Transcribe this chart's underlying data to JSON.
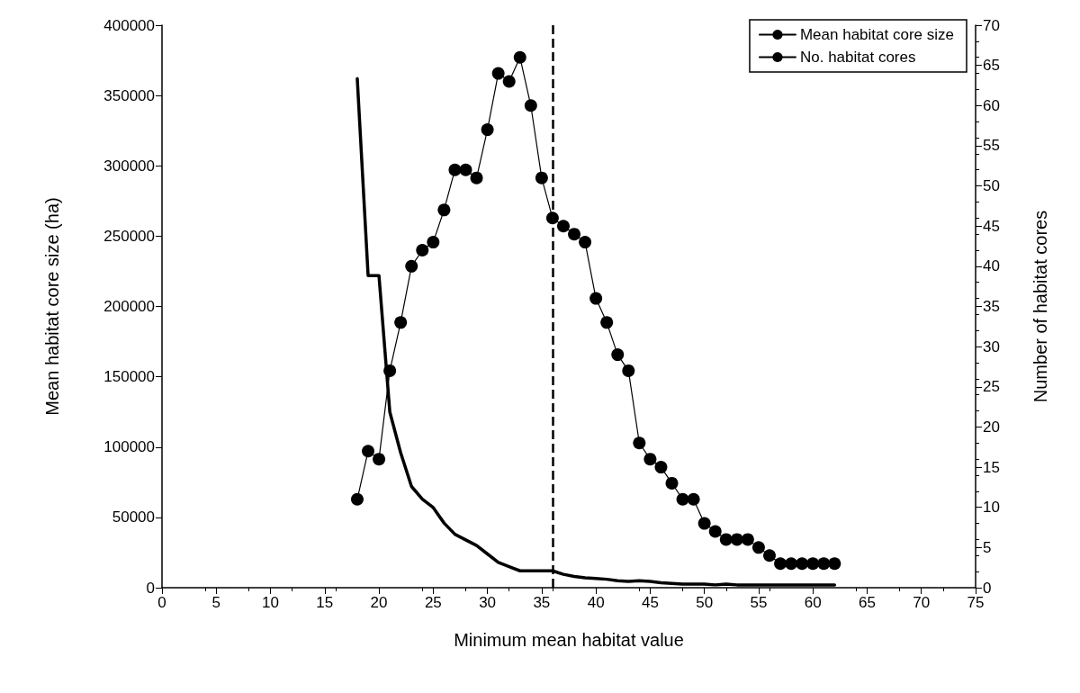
{
  "chart_data": {
    "type": "line",
    "xlabel": "Minimum mean habitat value",
    "ylabel": "Mean habitat core size (ha)",
    "y2label": "Number of habitat cores",
    "xlim": [
      0,
      75
    ],
    "xticks": [
      0,
      5,
      10,
      15,
      20,
      25,
      30,
      35,
      40,
      45,
      50,
      55,
      60,
      65,
      70,
      75
    ],
    "ylim": [
      0,
      400000
    ],
    "yticks": [
      0,
      50000,
      100000,
      150000,
      200000,
      250000,
      300000,
      350000,
      400000
    ],
    "y2lim": [
      0,
      70
    ],
    "y2ticks": [
      0,
      5,
      10,
      15,
      20,
      25,
      30,
      35,
      40,
      45,
      50,
      55,
      60,
      65,
      70
    ],
    "grid": false,
    "legend": "top right",
    "ref_lines": [
      {
        "axis": "x",
        "value": 36,
        "color": "#000000",
        "line_style": "dashed"
      }
    ],
    "x": [
      18,
      19,
      20,
      21,
      22,
      23,
      24,
      25,
      26,
      27,
      28,
      29,
      30,
      31,
      32,
      33,
      34,
      35,
      36,
      37,
      38,
      39,
      40,
      41,
      42,
      43,
      44,
      45,
      46,
      47,
      48,
      49,
      50,
      51,
      52,
      53,
      54,
      55,
      56,
      57,
      58,
      59,
      60,
      61,
      62
    ],
    "series": [
      {
        "name": "Mean habitat core size",
        "color": "#000000",
        "marker": "none",
        "values": [
          362000,
          222000,
          222000,
          125000,
          96000,
          72000,
          63000,
          57000,
          46000,
          38000,
          34000,
          30000,
          24000,
          18000,
          15000,
          12000,
          12000,
          12000,
          12000,
          9500,
          8000,
          7000,
          6500,
          6000,
          5000,
          4500,
          5000,
          4500,
          3500,
          3000,
          2500,
          2500,
          2500,
          2000,
          2500,
          2000,
          2000,
          2000,
          2000,
          2000,
          2000,
          2000,
          2000,
          2000,
          2000
        ]
      },
      {
        "name": "No. habitat cores",
        "color": "#000000",
        "marker": "circle",
        "axis": "y2",
        "values": [
          11,
          17,
          16,
          27,
          33,
          40,
          42,
          43,
          47,
          52,
          52,
          51,
          57,
          64,
          63,
          66,
          60,
          51,
          46,
          45,
          44,
          43,
          36,
          33,
          29,
          27,
          18,
          16,
          15,
          13,
          11,
          11,
          8,
          7,
          6,
          6,
          6,
          5,
          4,
          3,
          3,
          3,
          3,
          3,
          3
        ]
      }
    ]
  }
}
